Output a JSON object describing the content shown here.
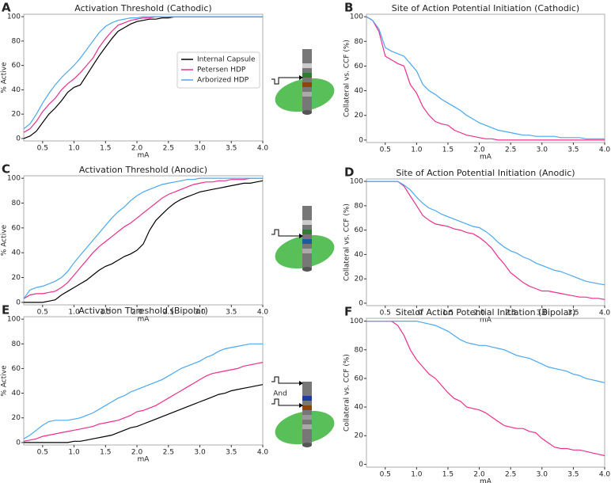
{
  "chart_data": [
    {
      "type": "line",
      "panel": "A",
      "title": "Activation Threshold (Cathodic)",
      "xlabel": "mA",
      "ylabel": "% Active",
      "x": [
        0.2,
        0.3,
        0.4,
        0.5,
        0.6,
        0.7,
        0.8,
        0.9,
        1.0,
        1.1,
        1.2,
        1.3,
        1.4,
        1.5,
        1.6,
        1.7,
        1.8,
        1.9,
        2.0,
        2.1,
        2.2,
        2.3,
        2.4,
        2.5,
        2.6,
        2.7,
        2.8,
        2.9,
        3.0,
        3.1,
        3.2,
        3.3,
        3.4,
        3.5,
        3.6,
        3.7,
        3.8,
        3.9,
        4.0
      ],
      "series": [
        {
          "name": "Internal Capsule",
          "color": "#000000",
          "values": [
            0,
            2,
            6,
            13,
            20,
            25,
            31,
            38,
            42,
            44,
            52,
            60,
            68,
            75,
            82,
            88,
            91,
            94,
            96,
            97,
            98,
            98,
            99,
            99,
            100,
            100,
            100,
            100,
            100,
            100,
            100,
            100,
            100,
            100,
            100,
            100,
            100,
            100,
            100
          ]
        },
        {
          "name": "Petersen HDP",
          "color": "#ec2f8c",
          "values": [
            5,
            8,
            14,
            22,
            28,
            33,
            40,
            45,
            49,
            54,
            60,
            66,
            75,
            82,
            88,
            93,
            95,
            97,
            98,
            99,
            99,
            100,
            100,
            100,
            100,
            100,
            100,
            100,
            100,
            100,
            100,
            100,
            100,
            100,
            100,
            100,
            100,
            100,
            100
          ]
        },
        {
          "name": "Arborized HDP",
          "color": "#4aa8f0",
          "values": [
            8,
            12,
            20,
            29,
            37,
            44,
            50,
            55,
            60,
            66,
            73,
            80,
            87,
            92,
            95,
            97,
            98,
            99,
            99,
            100,
            100,
            100,
            100,
            100,
            100,
            100,
            100,
            100,
            100,
            100,
            100,
            100,
            100,
            100,
            100,
            100,
            100,
            100,
            100
          ]
        }
      ],
      "xlim": [
        0.2,
        4.0
      ],
      "ylim": [
        -2,
        102
      ],
      "xticks": [
        0.5,
        {
          "value": 1,
          "label": "1.0"
        },
        1.5,
        {
          "value": 2,
          "label": "2.0"
        },
        2.5,
        {
          "value": 3,
          "label": "3.0"
        },
        3.5,
        {
          "value": 4,
          "label": "4.0"
        }
      ],
      "yticks": [
        0,
        20,
        40,
        60,
        80,
        100
      ],
      "legend": "right"
    },
    {
      "type": "line",
      "panel": "B",
      "title": "Site of Action Potential Initiation (Cathodic)",
      "xlabel": "mA",
      "ylabel": "Collateral vs. CCF (%)",
      "x": [
        0.2,
        0.3,
        0.4,
        0.5,
        0.6,
        0.7,
        0.8,
        0.9,
        1.0,
        1.1,
        1.2,
        1.3,
        1.4,
        1.5,
        1.6,
        1.7,
        1.8,
        1.9,
        2.0,
        2.1,
        2.2,
        2.3,
        2.4,
        2.5,
        2.6,
        2.7,
        2.8,
        2.9,
        3.0,
        3.1,
        3.2,
        3.3,
        3.4,
        3.5,
        3.6,
        3.7,
        3.8,
        3.9,
        4.0
      ],
      "series": [
        {
          "color": "#ec2f8c",
          "values": [
            100,
            97,
            88,
            68,
            65,
            62,
            60,
            45,
            38,
            27,
            20,
            15,
            13,
            12,
            8,
            6,
            4,
            3,
            2,
            1,
            1,
            0,
            0,
            0,
            0,
            0,
            0,
            0,
            0,
            0,
            0,
            0,
            0,
            0,
            0,
            0,
            0,
            0,
            0
          ]
        },
        {
          "color": "#4aa8f0",
          "values": [
            100,
            97,
            90,
            75,
            72,
            70,
            68,
            62,
            56,
            45,
            40,
            37,
            33,
            30,
            27,
            24,
            20,
            17,
            14,
            12,
            10,
            8,
            7,
            6,
            5,
            4,
            4,
            3,
            3,
            3,
            3,
            2,
            2,
            2,
            2,
            1,
            1,
            1,
            1
          ]
        }
      ],
      "xlim": [
        0.2,
        4.0
      ],
      "ylim": [
        -2,
        102
      ],
      "xticks": [
        0.5,
        {
          "value": 1,
          "label": "1.0"
        },
        1.5,
        {
          "value": 2,
          "label": "2.0"
        },
        2.5,
        {
          "value": 3,
          "label": "3.0"
        },
        3.5,
        {
          "value": 4,
          "label": "4.0"
        }
      ],
      "yticks": [
        0,
        20,
        40,
        60,
        80,
        100
      ]
    },
    {
      "type": "line",
      "panel": "C",
      "title": "Activation Threshold (Anodic)",
      "xlabel": "mA",
      "ylabel": "% Active",
      "x": [
        0.2,
        0.3,
        0.4,
        0.5,
        0.6,
        0.7,
        0.8,
        0.9,
        1.0,
        1.1,
        1.2,
        1.3,
        1.4,
        1.5,
        1.6,
        1.7,
        1.8,
        1.9,
        2.0,
        2.1,
        2.2,
        2.3,
        2.4,
        2.5,
        2.6,
        2.7,
        2.8,
        2.9,
        3.0,
        3.1,
        3.2,
        3.3,
        3.4,
        3.5,
        3.6,
        3.7,
        3.8,
        3.9,
        4.0
      ],
      "series": [
        {
          "color": "#000000",
          "values": [
            0,
            0,
            0,
            0,
            1,
            2,
            6,
            9,
            12,
            15,
            18,
            22,
            26,
            29,
            31,
            34,
            37,
            39,
            42,
            47,
            58,
            66,
            71,
            76,
            80,
            83,
            85,
            87,
            89,
            90,
            91,
            92,
            93,
            94,
            95,
            96,
            96,
            97,
            98
          ]
        },
        {
          "color": "#ec2f8c",
          "values": [
            3,
            6,
            7,
            7,
            8,
            9,
            12,
            16,
            22,
            28,
            34,
            40,
            45,
            49,
            53,
            57,
            61,
            64,
            68,
            72,
            76,
            80,
            84,
            87,
            89,
            91,
            93,
            95,
            96,
            97,
            97,
            98,
            98,
            99,
            99,
            99,
            100,
            100,
            100
          ]
        },
        {
          "color": "#4aa8f0",
          "values": [
            3,
            10,
            12,
            13,
            15,
            17,
            20,
            25,
            32,
            38,
            44,
            50,
            56,
            62,
            68,
            73,
            77,
            82,
            86,
            89,
            91,
            93,
            95,
            96,
            97,
            98,
            99,
            99,
            100,
            100,
            100,
            100,
            100,
            100,
            100,
            100,
            100,
            100,
            100
          ]
        }
      ],
      "xlim": [
        0.2,
        4.0
      ],
      "ylim": [
        -2,
        102
      ],
      "xticks": [
        0.5,
        {
          "value": 1,
          "label": "1.0"
        },
        1.5,
        {
          "value": 2,
          "label": "2.0"
        },
        2.5,
        {
          "value": 3,
          "label": "3.0"
        },
        3.5,
        {
          "value": 4,
          "label": "4.0"
        }
      ],
      "yticks": [
        0,
        20,
        40,
        60,
        80,
        100
      ]
    },
    {
      "type": "line",
      "panel": "D",
      "title": "Site of Action Potential Initiation (Anodic)",
      "xlabel": "mA",
      "ylabel": "Collateral vs. CCF (%)",
      "x": [
        0.2,
        0.3,
        0.4,
        0.5,
        0.6,
        0.7,
        0.8,
        0.9,
        1.0,
        1.1,
        1.2,
        1.3,
        1.4,
        1.5,
        1.6,
        1.7,
        1.8,
        1.9,
        2.0,
        2.1,
        2.2,
        2.3,
        2.4,
        2.5,
        2.6,
        2.7,
        2.8,
        2.9,
        3.0,
        3.1,
        3.2,
        3.3,
        3.4,
        3.5,
        3.6,
        3.7,
        3.8,
        3.9,
        4.0
      ],
      "series": [
        {
          "color": "#ec2f8c",
          "values": [
            100,
            100,
            100,
            100,
            100,
            100,
            96,
            88,
            80,
            72,
            68,
            65,
            64,
            63,
            61,
            60,
            58,
            57,
            54,
            50,
            45,
            38,
            32,
            25,
            21,
            17,
            14,
            12,
            10,
            10,
            9,
            8,
            7,
            6,
            5,
            5,
            4,
            4,
            3
          ]
        },
        {
          "color": "#4aa8f0",
          "values": [
            100,
            100,
            100,
            100,
            100,
            100,
            97,
            93,
            87,
            82,
            78,
            76,
            73,
            71,
            69,
            67,
            65,
            63,
            62,
            59,
            55,
            50,
            46,
            43,
            41,
            38,
            36,
            33,
            31,
            29,
            27,
            26,
            24,
            22,
            20,
            18,
            17,
            16,
            15
          ]
        }
      ],
      "xlim": [
        0.2,
        4.0
      ],
      "ylim": [
        -2,
        102
      ],
      "xticks": [
        0.5,
        {
          "value": 1,
          "label": "1.0"
        },
        1.5,
        {
          "value": 2,
          "label": "2.0"
        },
        2.5,
        {
          "value": 3,
          "label": "3.0"
        },
        3.5,
        {
          "value": 4,
          "label": "4.0"
        }
      ],
      "yticks": [
        0,
        20,
        40,
        60,
        80,
        100
      ]
    },
    {
      "type": "line",
      "panel": "E",
      "title": "Activation Threshold (Bipolar)",
      "xlabel": "mA",
      "ylabel": "% Active",
      "annotation": "And",
      "x": [
        0.2,
        0.3,
        0.4,
        0.5,
        0.6,
        0.7,
        0.8,
        0.9,
        1.0,
        1.1,
        1.2,
        1.3,
        1.4,
        1.5,
        1.6,
        1.7,
        1.8,
        1.9,
        2.0,
        2.1,
        2.2,
        2.3,
        2.4,
        2.5,
        2.6,
        2.7,
        2.8,
        2.9,
        3.0,
        3.1,
        3.2,
        3.3,
        3.4,
        3.5,
        3.6,
        3.7,
        3.8,
        3.9,
        4.0
      ],
      "series": [
        {
          "color": "#000000",
          "values": [
            0,
            0,
            0,
            0,
            0,
            0,
            0,
            0,
            1,
            1,
            2,
            3,
            4,
            5,
            6,
            8,
            10,
            12,
            13,
            15,
            17,
            19,
            21,
            23,
            25,
            27,
            29,
            31,
            33,
            35,
            37,
            39,
            40,
            42,
            43,
            44,
            45,
            46,
            47
          ]
        },
        {
          "color": "#ec2f8c",
          "values": [
            1,
            2,
            3,
            5,
            6,
            7,
            8,
            9,
            10,
            11,
            12,
            13,
            15,
            16,
            17,
            18,
            20,
            22,
            25,
            26,
            28,
            30,
            33,
            36,
            39,
            42,
            45,
            48,
            51,
            54,
            56,
            57,
            58,
            59,
            60,
            62,
            63,
            64,
            65
          ]
        },
        {
          "color": "#4aa8f0",
          "values": [
            3,
            6,
            10,
            14,
            17,
            18,
            18,
            18,
            19,
            20,
            22,
            24,
            27,
            30,
            33,
            36,
            38,
            41,
            43,
            45,
            47,
            49,
            51,
            54,
            57,
            60,
            62,
            64,
            66,
            69,
            71,
            74,
            76,
            77,
            78,
            79,
            80,
            80,
            80
          ]
        }
      ],
      "xlim": [
        0.2,
        4.0
      ],
      "ylim": [
        -2,
        102
      ],
      "xticks": [
        0.5,
        {
          "value": 1,
          "label": "1.0"
        },
        1.5,
        {
          "value": 2,
          "label": "2.0"
        },
        2.5,
        {
          "value": 3,
          "label": "3.0"
        },
        3.5,
        {
          "value": 4,
          "label": "4.0"
        }
      ],
      "yticks": [
        0,
        20,
        40,
        60,
        80,
        100
      ]
    },
    {
      "type": "line",
      "panel": "F",
      "title": "Site of Action Potential Initiation (Bipolar)",
      "xlabel": "mA",
      "ylabel": "Collateral vs. CCF (%)",
      "x": [
        0.2,
        0.3,
        0.4,
        0.5,
        0.6,
        0.7,
        0.8,
        0.9,
        1.0,
        1.1,
        1.2,
        1.3,
        1.4,
        1.5,
        1.6,
        1.7,
        1.8,
        1.9,
        2.0,
        2.1,
        2.2,
        2.3,
        2.4,
        2.5,
        2.6,
        2.7,
        2.8,
        2.9,
        3.0,
        3.1,
        3.2,
        3.3,
        3.4,
        3.5,
        3.6,
        3.7,
        3.8,
        3.9,
        4.0
      ],
      "series": [
        {
          "color": "#ec2f8c",
          "values": [
            100,
            100,
            100,
            100,
            100,
            97,
            90,
            80,
            73,
            68,
            63,
            60,
            55,
            50,
            46,
            44,
            40,
            39,
            38,
            36,
            33,
            30,
            27,
            26,
            25,
            25,
            23,
            22,
            18,
            15,
            12,
            11,
            11,
            10,
            10,
            9,
            8,
            7,
            6
          ]
        },
        {
          "color": "#4aa8f0",
          "values": [
            100,
            100,
            100,
            100,
            100,
            100,
            100,
            100,
            100,
            99,
            98,
            97,
            95,
            93,
            90,
            87,
            85,
            84,
            83,
            83,
            82,
            81,
            80,
            78,
            76,
            75,
            74,
            72,
            70,
            68,
            67,
            66,
            65,
            63,
            62,
            60,
            59,
            58,
            57
          ]
        }
      ],
      "xlim": [
        0.2,
        4.0
      ],
      "ylim": [
        -2,
        102
      ],
      "xticks": [
        0.5,
        {
          "value": 1,
          "label": "1.0"
        },
        1.5,
        {
          "value": 2,
          "label": "2.0"
        },
        2.5,
        {
          "value": 3,
          "label": "3.0"
        },
        3.5,
        {
          "value": 4,
          "label": "4.0"
        }
      ],
      "yticks": [
        0,
        20,
        40,
        60,
        80,
        100
      ]
    }
  ]
}
